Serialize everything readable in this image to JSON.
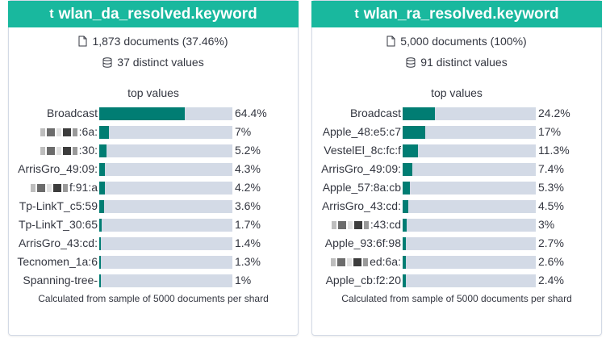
{
  "cards": [
    {
      "field_name": "wlan_da_resolved.keyword",
      "field_type_icon": "t",
      "documents": "1,873 documents (37.46%)",
      "distinct": "37 distinct values",
      "top_values_label": "top values",
      "footnote": "Calculated from sample of 5000 documents per shard",
      "colors": {
        "header": "#19b89e",
        "bar_fill": "#017d73",
        "bar_track": "#d3dae6"
      },
      "rows": [
        {
          "label": "Broadcast",
          "value": "64.4%",
          "fraction": 0.644,
          "redacted": false
        },
        {
          "label": ":6a:",
          "value": "7%",
          "fraction": 0.07,
          "redacted": true
        },
        {
          "label": ":30:",
          "value": "5.2%",
          "fraction": 0.052,
          "redacted": true
        },
        {
          "label": "ArrisGro_49:09:",
          "value": "4.3%",
          "fraction": 0.043,
          "redacted": false
        },
        {
          "label": "f:91:a",
          "value": "4.2%",
          "fraction": 0.042,
          "redacted": true
        },
        {
          "label": "Tp-LinkT_c5:59",
          "value": "3.6%",
          "fraction": 0.036,
          "redacted": false
        },
        {
          "label": "Tp-LinkT_30:65",
          "value": "1.7%",
          "fraction": 0.017,
          "redacted": false
        },
        {
          "label": "ArrisGro_43:cd:",
          "value": "1.4%",
          "fraction": 0.014,
          "redacted": false
        },
        {
          "label": "Tecnomen_1a:6",
          "value": "1.3%",
          "fraction": 0.013,
          "redacted": false
        },
        {
          "label": "Spanning-tree-",
          "value": "1%",
          "fraction": 0.01,
          "redacted": false
        }
      ]
    },
    {
      "field_name": "wlan_ra_resolved.keyword",
      "field_type_icon": "t",
      "documents": "5,000 documents (100%)",
      "distinct": "91 distinct values",
      "top_values_label": "top values",
      "footnote": "Calculated from sample of 5000 documents per shard",
      "colors": {
        "header": "#19b89e",
        "bar_fill": "#017d73",
        "bar_track": "#d3dae6"
      },
      "rows": [
        {
          "label": "Broadcast",
          "value": "24.2%",
          "fraction": 0.242,
          "redacted": false
        },
        {
          "label": "Apple_48:e5:c7",
          "value": "17%",
          "fraction": 0.17,
          "redacted": false
        },
        {
          "label": "VestelEl_8c:fc:f",
          "value": "11.3%",
          "fraction": 0.113,
          "redacted": false
        },
        {
          "label": "ArrisGro_49:09:",
          "value": "7.4%",
          "fraction": 0.074,
          "redacted": false
        },
        {
          "label": "Apple_57:8a:cb",
          "value": "5.3%",
          "fraction": 0.053,
          "redacted": false
        },
        {
          "label": "ArrisGro_43:cd:",
          "value": "4.5%",
          "fraction": 0.045,
          "redacted": false
        },
        {
          "label": ":43:cd",
          "value": "3%",
          "fraction": 0.03,
          "redacted": true
        },
        {
          "label": "Apple_93:6f:98",
          "value": "2.7%",
          "fraction": 0.027,
          "redacted": false
        },
        {
          "label": "ed:6a:",
          "value": "2.6%",
          "fraction": 0.026,
          "redacted": true
        },
        {
          "label": "Apple_cb:f2:20",
          "value": "2.4%",
          "fraction": 0.024,
          "redacted": false
        }
      ]
    }
  ]
}
